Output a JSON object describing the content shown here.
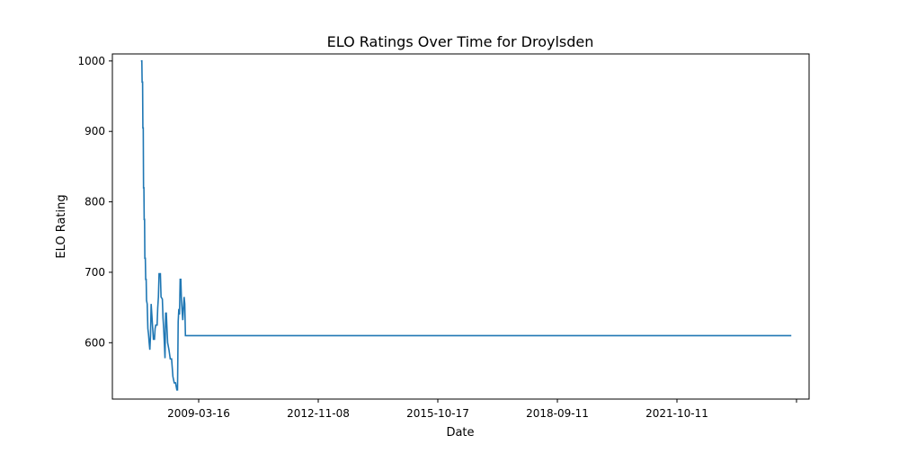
{
  "chart_data": {
    "type": "line",
    "title": "ELO Ratings Over Time for Droylsden",
    "xlabel": "Date",
    "ylabel": "ELO Rating",
    "x_ticks": [
      "2009-03-16",
      "2012-11-08",
      "2015-10-17",
      "2018-09-11",
      "2021-10-11",
      ""
    ],
    "y_ticks": [
      600,
      700,
      800,
      900,
      1000
    ],
    "xlim": [
      "2005-10-16",
      "2026-01-20"
    ],
    "ylim": [
      520,
      1010
    ],
    "grid": false,
    "legend": "none",
    "series": [
      {
        "color": "#1f77b4",
        "points": [
          [
            "2006-08-15",
            1000
          ],
          [
            "2006-08-25",
            1000
          ],
          [
            "2006-08-28",
            970
          ],
          [
            "2006-09-02",
            970
          ],
          [
            "2006-09-05",
            905
          ],
          [
            "2006-09-09",
            905
          ],
          [
            "2006-09-12",
            820
          ],
          [
            "2006-09-16",
            820
          ],
          [
            "2006-09-19",
            775
          ],
          [
            "2006-09-23",
            775
          ],
          [
            "2006-09-26",
            720
          ],
          [
            "2006-10-01",
            720
          ],
          [
            "2006-10-05",
            690
          ],
          [
            "2006-10-10",
            690
          ],
          [
            "2006-10-14",
            660
          ],
          [
            "2006-10-21",
            655
          ],
          [
            "2006-10-28",
            620
          ],
          [
            "2006-11-04",
            612
          ],
          [
            "2006-11-11",
            600
          ],
          [
            "2006-11-18",
            590
          ],
          [
            "2006-11-25",
            610
          ],
          [
            "2006-12-02",
            655
          ],
          [
            "2006-12-09",
            640
          ],
          [
            "2006-12-16",
            625
          ],
          [
            "2006-12-26",
            605
          ],
          [
            "2007-01-06",
            605
          ],
          [
            "2007-01-13",
            620
          ],
          [
            "2007-01-20",
            625
          ],
          [
            "2007-02-03",
            625
          ],
          [
            "2007-02-10",
            650
          ],
          [
            "2007-02-17",
            665
          ],
          [
            "2007-02-24",
            698
          ],
          [
            "2007-03-10",
            698
          ],
          [
            "2007-03-17",
            665
          ],
          [
            "2007-03-31",
            662
          ],
          [
            "2007-04-07",
            635
          ],
          [
            "2007-04-14",
            620
          ],
          [
            "2007-04-21",
            600
          ],
          [
            "2007-04-28",
            578
          ],
          [
            "2007-05-05",
            642
          ],
          [
            "2007-05-12",
            642
          ],
          [
            "2007-05-19",
            620
          ],
          [
            "2007-05-26",
            600
          ],
          [
            "2007-06-09",
            590
          ],
          [
            "2007-06-23",
            577
          ],
          [
            "2007-07-07",
            577
          ],
          [
            "2007-07-21",
            552
          ],
          [
            "2007-08-04",
            543
          ],
          [
            "2007-08-18",
            543
          ],
          [
            "2007-09-01",
            533
          ],
          [
            "2007-09-08",
            533
          ],
          [
            "2007-09-15",
            630
          ],
          [
            "2007-09-22",
            648
          ],
          [
            "2007-09-29",
            640
          ],
          [
            "2007-10-06",
            690
          ],
          [
            "2007-10-13",
            690
          ],
          [
            "2007-10-20",
            660
          ],
          [
            "2007-10-27",
            645
          ],
          [
            "2007-11-03",
            632
          ],
          [
            "2007-11-10",
            650
          ],
          [
            "2007-11-17",
            665
          ],
          [
            "2007-11-24",
            655
          ],
          [
            "2007-12-01",
            610
          ],
          [
            "2025-07-15",
            610
          ]
        ]
      }
    ]
  }
}
